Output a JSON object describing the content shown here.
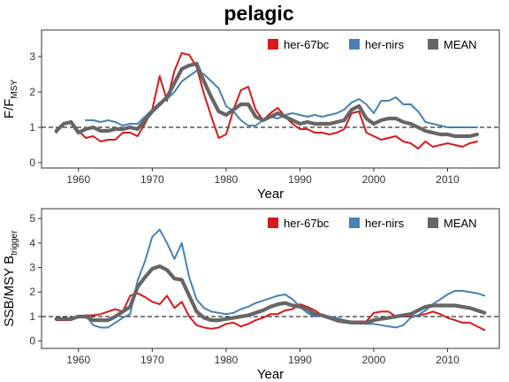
{
  "title": "pelagic",
  "colors": {
    "her-67bc": "#d7191c",
    "her-nirs": "#4682b4",
    "MEAN": "#666666"
  },
  "chart_data": [
    {
      "type": "line",
      "xlabel": "Year",
      "ylabel": "F/F",
      "ylabel_sub": "MSY",
      "xlim": [
        1955,
        2017
      ],
      "ylim": [
        -0.15,
        3.75
      ],
      "xticks": [
        1960,
        1970,
        1980,
        1990,
        2000,
        2010
      ],
      "yticks": [
        0,
        1,
        2,
        3
      ],
      "reference_line": 1,
      "legend": [
        "her-67bc",
        "her-nirs",
        "MEAN"
      ],
      "legend_position": "top-right",
      "series": [
        {
          "name": "her-67bc",
          "x": [
            1957,
            1958,
            1959,
            1960,
            1961,
            1962,
            1963,
            1964,
            1965,
            1966,
            1967,
            1968,
            1969,
            1970,
            1971,
            1972,
            1973,
            1974,
            1975,
            1976,
            1977,
            1978,
            1979,
            1980,
            1981,
            1982,
            1983,
            1984,
            1985,
            1986,
            1987,
            1988,
            1989,
            1990,
            1991,
            1992,
            1993,
            1994,
            1995,
            1996,
            1997,
            1998,
            1999,
            2000,
            2001,
            2002,
            2003,
            2004,
            2005,
            2006,
            2007,
            2008,
            2009,
            2010,
            2011,
            2012,
            2013,
            2014
          ],
          "y": [
            0.85,
            1.1,
            1.15,
            0.9,
            0.7,
            0.75,
            0.6,
            0.65,
            0.65,
            0.85,
            0.85,
            0.75,
            1.1,
            1.5,
            2.45,
            1.75,
            2.6,
            3.1,
            3.05,
            2.7,
            1.95,
            1.3,
            0.7,
            0.8,
            1.5,
            2.05,
            2.15,
            1.5,
            1.2,
            1.4,
            1.55,
            1.3,
            1.1,
            0.95,
            0.95,
            0.85,
            0.85,
            0.8,
            0.85,
            0.95,
            1.4,
            1.45,
            0.85,
            0.75,
            0.65,
            0.7,
            0.75,
            0.6,
            0.55,
            0.4,
            0.6,
            0.45,
            0.5,
            0.55,
            0.5,
            0.45,
            0.55,
            0.6
          ]
        },
        {
          "name": "her-nirs",
          "x": [
            1961,
            1962,
            1963,
            1964,
            1965,
            1966,
            1967,
            1968,
            1969,
            1970,
            1971,
            1972,
            1973,
            1974,
            1975,
            1976,
            1977,
            1978,
            1979,
            1980,
            1981,
            1982,
            1983,
            1984,
            1985,
            1986,
            1987,
            1988,
            1989,
            1990,
            1991,
            1992,
            1993,
            1994,
            1995,
            1996,
            1997,
            1998,
            1999,
            2000,
            2001,
            2002,
            2003,
            2004,
            2005,
            2006,
            2007,
            2008,
            2009,
            2010,
            2011,
            2012,
            2013,
            2014
          ],
          "y": [
            1.2,
            1.2,
            1.15,
            1.2,
            1.15,
            1.05,
            1.1,
            1.1,
            1.3,
            1.5,
            1.7,
            1.8,
            2.0,
            2.3,
            2.45,
            2.6,
            2.5,
            2.3,
            2.1,
            1.6,
            1.45,
            1.2,
            1.05,
            1.05,
            1.2,
            1.3,
            1.25,
            1.35,
            1.4,
            1.35,
            1.3,
            1.35,
            1.3,
            1.35,
            1.4,
            1.5,
            1.7,
            1.8,
            1.65,
            1.4,
            1.75,
            1.75,
            1.85,
            1.65,
            1.65,
            1.45,
            1.15,
            1.1,
            1.05,
            1.0,
            1.0,
            1.0,
            1.0,
            1.0
          ]
        },
        {
          "name": "MEAN",
          "x": [
            1957,
            1958,
            1959,
            1960,
            1961,
            1962,
            1963,
            1964,
            1965,
            1966,
            1967,
            1968,
            1969,
            1970,
            1971,
            1972,
            1973,
            1974,
            1975,
            1976,
            1977,
            1978,
            1979,
            1980,
            1981,
            1982,
            1983,
            1984,
            1985,
            1986,
            1987,
            1988,
            1989,
            1990,
            1991,
            1992,
            1993,
            1994,
            1995,
            1996,
            1997,
            1998,
            1999,
            2000,
            2001,
            2002,
            2003,
            2004,
            2005,
            2006,
            2007,
            2008,
            2009,
            2010,
            2011,
            2012,
            2013,
            2014
          ],
          "y": [
            0.9,
            1.1,
            1.15,
            0.85,
            0.95,
            1.0,
            0.9,
            0.9,
            0.95,
            0.95,
            1.0,
            0.95,
            1.2,
            1.45,
            1.65,
            1.85,
            2.25,
            2.65,
            2.75,
            2.8,
            2.3,
            1.85,
            1.45,
            1.35,
            1.5,
            1.65,
            1.65,
            1.3,
            1.2,
            1.3,
            1.4,
            1.3,
            1.2,
            1.1,
            1.15,
            1.1,
            1.1,
            1.1,
            1.15,
            1.2,
            1.5,
            1.6,
            1.25,
            1.1,
            1.2,
            1.25,
            1.25,
            1.15,
            1.1,
            1.0,
            0.9,
            0.85,
            0.8,
            0.8,
            0.75,
            0.75,
            0.75,
            0.8
          ]
        }
      ]
    },
    {
      "type": "line",
      "xlabel": "Year",
      "ylabel": "SSB/MSY B",
      "ylabel_sub": "trigger",
      "xlim": [
        1955,
        2017
      ],
      "ylim": [
        -0.3,
        5.4
      ],
      "xticks": [
        1960,
        1970,
        1980,
        1990,
        2000,
        2010
      ],
      "yticks": [
        0,
        1,
        2,
        3,
        4,
        5
      ],
      "reference_line": 1,
      "legend": [
        "her-67bc",
        "her-nirs",
        "MEAN"
      ],
      "legend_position": "top-right",
      "series": [
        {
          "name": "her-67bc",
          "x": [
            1957,
            1958,
            1959,
            1960,
            1961,
            1962,
            1963,
            1964,
            1965,
            1966,
            1967,
            1968,
            1969,
            1970,
            1971,
            1972,
            1973,
            1974,
            1975,
            1976,
            1977,
            1978,
            1979,
            1980,
            1981,
            1982,
            1983,
            1984,
            1985,
            1986,
            1987,
            1988,
            1989,
            1990,
            1991,
            1992,
            1993,
            1994,
            1995,
            1996,
            1997,
            1998,
            1999,
            2000,
            2001,
            2002,
            2003,
            2004,
            2005,
            2006,
            2007,
            2008,
            2009,
            2010,
            2011,
            2012,
            2013,
            2014,
            2015
          ],
          "y": [
            0.85,
            0.85,
            0.85,
            1.0,
            1.05,
            1.05,
            1.1,
            1.2,
            1.3,
            1.2,
            1.85,
            1.95,
            1.8,
            1.6,
            1.5,
            1.85,
            1.35,
            1.6,
            1.0,
            0.65,
            0.55,
            0.5,
            0.55,
            0.7,
            0.75,
            0.6,
            0.7,
            0.85,
            0.95,
            1.1,
            1.1,
            1.25,
            1.3,
            1.5,
            1.4,
            1.25,
            1.05,
            0.95,
            0.8,
            0.75,
            0.8,
            0.8,
            0.8,
            1.15,
            1.2,
            1.2,
            1.0,
            1.0,
            1.0,
            1.05,
            1.1,
            1.2,
            1.1,
            0.95,
            0.85,
            0.75,
            0.75,
            0.6,
            0.45
          ]
        },
        {
          "name": "her-nirs",
          "x": [
            1961,
            1962,
            1963,
            1964,
            1965,
            1966,
            1967,
            1968,
            1969,
            1970,
            1971,
            1972,
            1973,
            1974,
            1975,
            1976,
            1977,
            1978,
            1979,
            1980,
            1981,
            1982,
            1983,
            1984,
            1985,
            1986,
            1987,
            1988,
            1989,
            1990,
            1991,
            1992,
            1993,
            1994,
            1995,
            1996,
            1997,
            1998,
            1999,
            2000,
            2001,
            2002,
            2003,
            2004,
            2005,
            2006,
            2007,
            2008,
            2009,
            2010,
            2011,
            2012,
            2013,
            2014,
            2015
          ],
          "y": [
            1.05,
            0.65,
            0.55,
            0.55,
            0.75,
            0.95,
            1.1,
            2.45,
            3.25,
            4.25,
            4.55,
            4.0,
            3.35,
            4.0,
            2.6,
            1.7,
            1.35,
            1.2,
            1.15,
            1.1,
            1.15,
            1.3,
            1.4,
            1.55,
            1.65,
            1.75,
            1.85,
            1.9,
            1.7,
            1.4,
            1.15,
            1.0,
            1.05,
            1.0,
            0.95,
            0.85,
            0.8,
            0.75,
            0.7,
            0.7,
            0.65,
            0.6,
            0.55,
            0.65,
            0.95,
            1.05,
            1.25,
            1.5,
            1.7,
            1.9,
            2.05,
            2.05,
            2.0,
            1.95,
            1.85
          ]
        },
        {
          "name": "MEAN",
          "x": [
            1957,
            1958,
            1959,
            1960,
            1961,
            1962,
            1963,
            1964,
            1965,
            1966,
            1967,
            1968,
            1969,
            1970,
            1971,
            1972,
            1973,
            1974,
            1975,
            1976,
            1977,
            1978,
            1979,
            1980,
            1981,
            1982,
            1983,
            1984,
            1985,
            1986,
            1987,
            1988,
            1989,
            1990,
            1991,
            1992,
            1993,
            1994,
            1995,
            1996,
            1997,
            1998,
            1999,
            2000,
            2001,
            2002,
            2003,
            2004,
            2005,
            2006,
            2007,
            2008,
            2009,
            2010,
            2011,
            2012,
            2013,
            2014,
            2015
          ],
          "y": [
            0.9,
            0.9,
            0.9,
            1.0,
            1.0,
            0.85,
            0.85,
            0.85,
            1.0,
            1.2,
            1.4,
            2.2,
            2.6,
            2.95,
            3.05,
            2.9,
            2.55,
            2.5,
            1.85,
            1.2,
            0.95,
            0.85,
            0.85,
            0.9,
            0.95,
            1.0,
            1.05,
            1.15,
            1.25,
            1.4,
            1.5,
            1.55,
            1.45,
            1.4,
            1.3,
            1.1,
            1.05,
            0.95,
            0.85,
            0.8,
            0.75,
            0.75,
            0.75,
            0.85,
            0.9,
            0.95,
            1.0,
            1.05,
            1.1,
            1.25,
            1.4,
            1.45,
            1.45,
            1.45,
            1.45,
            1.4,
            1.35,
            1.25,
            1.15
          ]
        }
      ]
    }
  ]
}
